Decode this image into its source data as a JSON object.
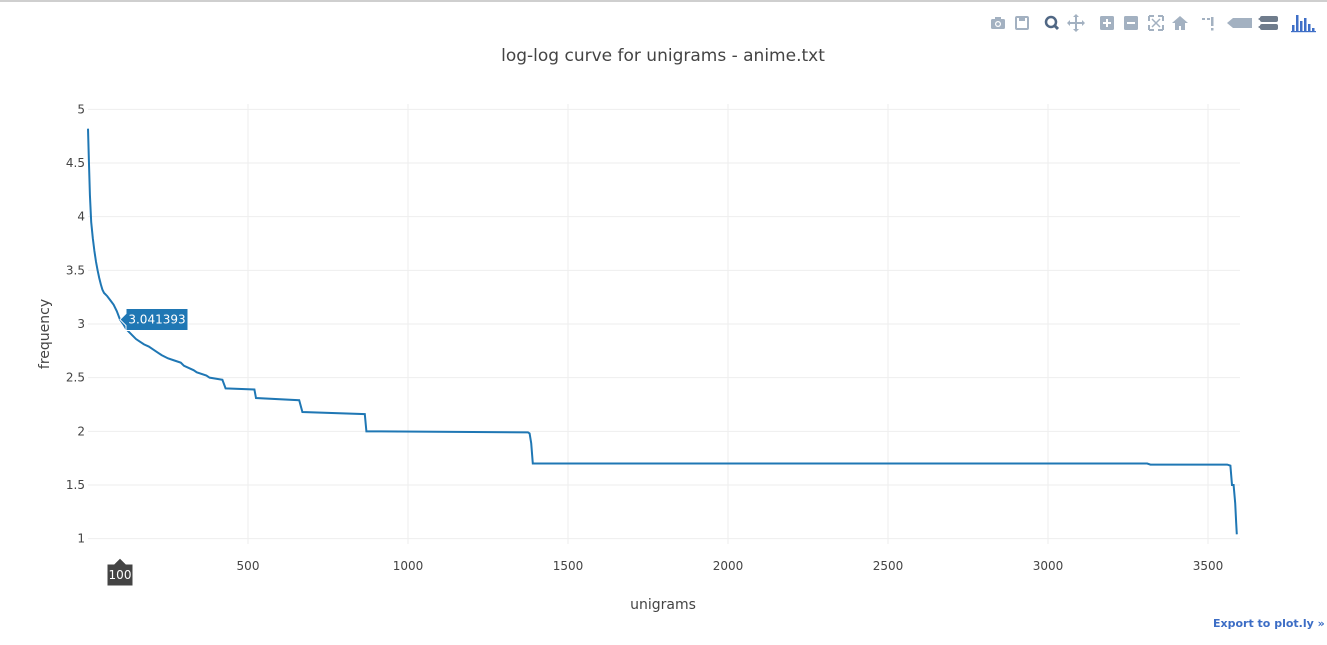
{
  "chart_data": {
    "type": "line",
    "title": "log-log curve for unigrams - anime.txt",
    "xlabel": "unigrams",
    "ylabel": "frequency",
    "xlim": [
      0,
      3600
    ],
    "ylim": [
      0.95,
      5.05
    ],
    "xticks": [
      500,
      1000,
      1500,
      2000,
      2500,
      3000,
      3500
    ],
    "yticks": [
      1,
      1.5,
      2,
      2.5,
      3,
      3.5,
      4,
      4.5,
      5
    ],
    "grid": true,
    "line_color": "#1f77b4",
    "series": [
      {
        "x": [
          0,
          3,
          6,
          10,
          15,
          20,
          25,
          30,
          35,
          40,
          45,
          50,
          60,
          70,
          80,
          90,
          100,
          110,
          120,
          130,
          140,
          150,
          160,
          175,
          190,
          200,
          215,
          230,
          250,
          270,
          290,
          300,
          330,
          340,
          370,
          380,
          420,
          430,
          520,
          525,
          660,
          670,
          865,
          870,
          1375,
          1380,
          1385,
          1390,
          3310,
          3320,
          3560,
          3570,
          3575,
          3580,
          3585,
          3588,
          3590
        ],
        "y": [
          4.82,
          4.5,
          4.2,
          3.95,
          3.8,
          3.68,
          3.58,
          3.5,
          3.43,
          3.37,
          3.32,
          3.29,
          3.26,
          3.22,
          3.18,
          3.12,
          3.041393,
          3.0,
          2.95,
          2.92,
          2.89,
          2.86,
          2.84,
          2.81,
          2.79,
          2.77,
          2.74,
          2.71,
          2.68,
          2.66,
          2.64,
          2.61,
          2.57,
          2.55,
          2.52,
          2.5,
          2.48,
          2.4,
          2.39,
          2.31,
          2.29,
          2.18,
          2.16,
          2.0,
          1.99,
          1.98,
          1.89,
          1.7,
          1.7,
          1.69,
          1.69,
          1.68,
          1.5,
          1.5,
          1.33,
          1.15,
          1.04
        ]
      }
    ],
    "hover": {
      "x": 100,
      "y": 3.041393,
      "x_label": "100",
      "y_label": "3.041393"
    }
  },
  "modebar": {
    "icons": [
      "camera-icon",
      "save-icon",
      "zoom-icon",
      "pan-icon",
      "zoom-in-icon",
      "zoom-out-icon",
      "autoscale-icon",
      "home-icon",
      "spike-lines-icon",
      "hover-closest-icon",
      "hover-compare-icon",
      "plotly-logo-icon"
    ]
  },
  "export_link": "Export to plot.ly »"
}
